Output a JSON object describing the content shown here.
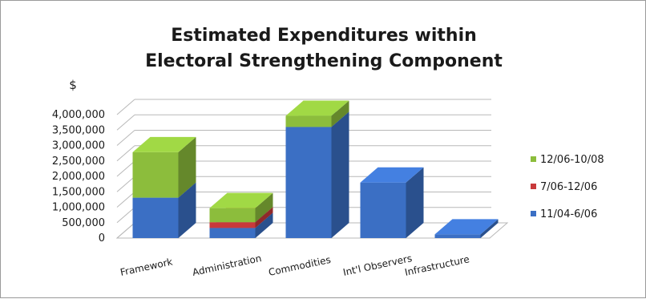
{
  "chart_data": {
    "type": "bar",
    "subtype": "3d-stacked-column",
    "title": "Estimated Expenditures within Electoral Strengthening Component",
    "ylabel": "$",
    "xlabel": "",
    "categories": [
      "Framework",
      "Administration",
      "Commodities",
      "Int'l Observers",
      "Infrastructure"
    ],
    "ylim": [
      0,
      4000000
    ],
    "yticks": [
      "0",
      "500,000",
      "1,000,000",
      "1,500,000",
      "2,000,000",
      "2,500,000",
      "3,000,000",
      "3,500,000",
      "4,000,000"
    ],
    "series": [
      {
        "name": "11/04-6/06",
        "color": "#3b6fc4",
        "values": [
          1200000,
          300000,
          3300000,
          1650000,
          110000
        ]
      },
      {
        "name": "7/06-12/06",
        "color": "#c8393b",
        "values": [
          0,
          170000,
          0,
          0,
          0
        ]
      },
      {
        "name": "12/06-10/08",
        "color": "#8cbd3c",
        "values": [
          1350000,
          420000,
          330000,
          0,
          0
        ]
      }
    ],
    "legend_order": [
      "12/06-10/08",
      "7/06-12/06",
      "11/04-6/06"
    ],
    "legend_position": "right",
    "grid": true
  }
}
